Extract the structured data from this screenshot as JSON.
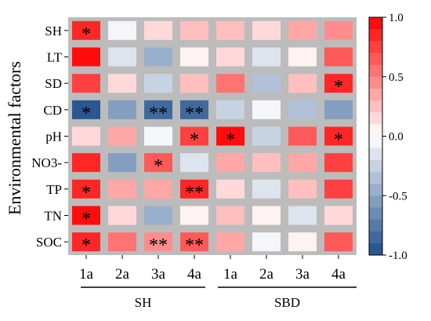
{
  "chart_data": {
    "type": "heatmap",
    "title": "",
    "ylabel": "Environmental factors",
    "rows": [
      "SH",
      "LT",
      "SD",
      "CD",
      "pH",
      "NO3-",
      "TP",
      "TN",
      "SOC"
    ],
    "columns": [
      "1a",
      "2a",
      "3a",
      "4a",
      "1a",
      "2a",
      "3a",
      "4a"
    ],
    "column_groups": [
      {
        "label": "SH",
        "columns": [
          "1a",
          "2a",
          "3a",
          "4a"
        ]
      },
      {
        "label": "SBD",
        "columns": [
          "1a",
          "2a",
          "3a",
          "4a"
        ]
      }
    ],
    "values": [
      [
        0.83,
        -0.08,
        0.12,
        0.28,
        0.24,
        0.14,
        0.3,
        0.47
      ],
      [
        0.92,
        -0.17,
        -0.48,
        0.0,
        0.12,
        -0.14,
        0.08,
        0.62
      ],
      [
        0.7,
        0.1,
        -0.24,
        0.26,
        0.57,
        -0.38,
        0.26,
        0.82
      ],
      [
        -0.9,
        -0.52,
        -0.88,
        -0.8,
        -0.22,
        -0.05,
        -0.38,
        -0.57
      ],
      [
        0.12,
        0.3,
        -0.05,
        0.74,
        0.9,
        -0.25,
        0.6,
        0.85
      ],
      [
        0.85,
        -0.52,
        0.64,
        -0.16,
        0.3,
        0.2,
        0.32,
        0.76
      ],
      [
        0.88,
        0.35,
        0.36,
        0.84,
        0.12,
        -0.14,
        0.24,
        0.71
      ],
      [
        0.9,
        0.1,
        -0.42,
        0.0,
        0.22,
        0.0,
        -0.16,
        0.16
      ],
      [
        0.86,
        0.55,
        0.48,
        0.6,
        0.34,
        -0.08,
        0.0,
        0.64
      ]
    ],
    "significance": [
      [
        "*",
        "",
        "",
        "",
        "",
        "",
        "",
        ""
      ],
      [
        "",
        "",
        "",
        "",
        "",
        "",
        "",
        ""
      ],
      [
        "",
        "",
        "",
        "",
        "",
        "",
        "",
        "*"
      ],
      [
        "*",
        "",
        "**",
        "**",
        "",
        "",
        "",
        ""
      ],
      [
        "",
        "",
        "",
        "*",
        "*",
        "",
        "",
        "*"
      ],
      [
        "",
        "",
        "*",
        "",
        "",
        "",
        "",
        ""
      ],
      [
        "*",
        "",
        "",
        "**",
        "",
        "",
        "",
        ""
      ],
      [
        "*",
        "",
        "",
        "",
        "",
        "",
        "",
        ""
      ],
      [
        "*",
        "",
        "**",
        "**",
        "",
        "",
        "",
        ""
      ]
    ],
    "colorbar": {
      "min": -1.0,
      "max": 1.0,
      "ticks": [
        "1.0",
        "0.5",
        "0.0",
        "-0.5",
        "-1.0"
      ],
      "tick_values": [
        1.0,
        0.5,
        0.0,
        -0.5,
        -1.0
      ],
      "steps": 20
    },
    "colors": {
      "negative_end": "#1f4e8c",
      "neutral": "#ffffff",
      "positive_end": "#ff0000",
      "panel_background": "#bcbcbc"
    }
  }
}
